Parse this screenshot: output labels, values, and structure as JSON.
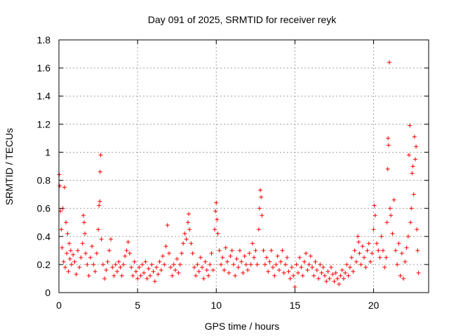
{
  "chart_data": {
    "type": "scatter",
    "title": "Day 091 of 2025, SRMTID for receiver reyk",
    "xlabel": "GPS time / hours",
    "ylabel": "SRMTID / TECUs",
    "xlim": [
      0,
      23.5
    ],
    "ylim": [
      0,
      1.8
    ],
    "xticks": [
      0,
      5,
      10,
      15,
      20
    ],
    "yticks": [
      0,
      0.2,
      0.4,
      0.6,
      0.8,
      1,
      1.2,
      1.4,
      1.6,
      1.8
    ],
    "xtick_labels": [
      "0",
      "5",
      "10",
      "15",
      "20"
    ],
    "ytick_labels": [
      "0",
      "0.2",
      "0.4",
      "0.6",
      "0.8",
      "1",
      "1.2",
      "1.4",
      "1.6",
      "1.8"
    ],
    "grid": true,
    "marker": "+",
    "color": "#ff0000",
    "series": [
      {
        "name": "SRMTID",
        "points": [
          [
            0.02,
            0.84
          ],
          [
            0.05,
            0.76
          ],
          [
            0.1,
            0.58
          ],
          [
            0.15,
            0.45
          ],
          [
            0.2,
            0.32
          ],
          [
            0.25,
            0.6
          ],
          [
            0.3,
            0.22
          ],
          [
            0.35,
            0.75
          ],
          [
            0.4,
            0.18
          ],
          [
            0.45,
            0.5
          ],
          [
            0.5,
            0.28
          ],
          [
            0.55,
            0.42
          ],
          [
            0.6,
            0.15
          ],
          [
            0.65,
            0.35
          ],
          [
            0.7,
            0.24
          ],
          [
            0.75,
            0.3
          ],
          [
            0.8,
            0.2
          ],
          [
            0.9,
            0.27
          ],
          [
            1.0,
            0.22
          ],
          [
            1.1,
            0.13
          ],
          [
            1.2,
            0.3
          ],
          [
            1.3,
            0.18
          ],
          [
            1.4,
            0.25
          ],
          [
            1.5,
            0.35
          ],
          [
            1.55,
            0.55
          ],
          [
            1.6,
            0.5
          ],
          [
            1.65,
            0.42
          ],
          [
            1.7,
            0.28
          ],
          [
            1.8,
            0.2
          ],
          [
            1.9,
            0.12
          ],
          [
            2.0,
            0.25
          ],
          [
            2.1,
            0.33
          ],
          [
            2.2,
            0.2
          ],
          [
            2.3,
            0.15
          ],
          [
            2.4,
            0.28
          ],
          [
            2.5,
            0.45
          ],
          [
            2.55,
            0.62
          ],
          [
            2.6,
            0.65
          ],
          [
            2.62,
            0.86
          ],
          [
            2.65,
            0.98
          ],
          [
            2.7,
            0.38
          ],
          [
            2.8,
            0.2
          ],
          [
            2.9,
            0.1
          ],
          [
            3.0,
            0.16
          ],
          [
            3.1,
            0.22
          ],
          [
            3.2,
            0.3
          ],
          [
            3.3,
            0.38
          ],
          [
            3.4,
            0.18
          ],
          [
            3.5,
            0.12
          ],
          [
            3.6,
            0.2
          ],
          [
            3.7,
            0.15
          ],
          [
            3.8,
            0.22
          ],
          [
            3.9,
            0.18
          ],
          [
            4.0,
            0.12
          ],
          [
            4.1,
            0.2
          ],
          [
            4.2,
            0.26
          ],
          [
            4.3,
            0.3
          ],
          [
            4.4,
            0.36
          ],
          [
            4.5,
            0.28
          ],
          [
            4.6,
            0.18
          ],
          [
            4.7,
            0.12
          ],
          [
            4.8,
            0.22
          ],
          [
            4.9,
            0.15
          ],
          [
            5.0,
            0.1
          ],
          [
            5.1,
            0.18
          ],
          [
            5.2,
            0.12
          ],
          [
            5.3,
            0.2
          ],
          [
            5.4,
            0.14
          ],
          [
            5.5,
            0.22
          ],
          [
            5.6,
            0.1
          ],
          [
            5.7,
            0.17
          ],
          [
            5.8,
            0.12
          ],
          [
            5.9,
            0.2
          ],
          [
            6.0,
            0.15
          ],
          [
            6.1,
            0.08
          ],
          [
            6.2,
            0.18
          ],
          [
            6.3,
            0.13
          ],
          [
            6.4,
            0.22
          ],
          [
            6.5,
            0.16
          ],
          [
            6.6,
            0.26
          ],
          [
            6.7,
            0.2
          ],
          [
            6.8,
            0.33
          ],
          [
            6.9,
            0.48
          ],
          [
            7.0,
            0.28
          ],
          [
            7.1,
            0.18
          ],
          [
            7.2,
            0.12
          ],
          [
            7.3,
            0.2
          ],
          [
            7.4,
            0.16
          ],
          [
            7.5,
            0.24
          ],
          [
            7.6,
            0.14
          ],
          [
            7.7,
            0.2
          ],
          [
            7.8,
            0.28
          ],
          [
            7.9,
            0.35
          ],
          [
            8.0,
            0.42
          ],
          [
            8.1,
            0.38
          ],
          [
            8.2,
            0.5
          ],
          [
            8.25,
            0.56
          ],
          [
            8.3,
            0.45
          ],
          [
            8.4,
            0.35
          ],
          [
            8.5,
            0.28
          ],
          [
            8.6,
            0.18
          ],
          [
            8.7,
            0.12
          ],
          [
            8.8,
            0.2
          ],
          [
            8.9,
            0.15
          ],
          [
            9.0,
            0.25
          ],
          [
            9.1,
            0.18
          ],
          [
            9.2,
            0.1
          ],
          [
            9.3,
            0.22
          ],
          [
            9.4,
            0.16
          ],
          [
            9.5,
            0.12
          ],
          [
            9.6,
            0.2
          ],
          [
            9.7,
            0.28
          ],
          [
            9.8,
            0.16
          ],
          [
            9.9,
            0.45
          ],
          [
            9.95,
            0.58
          ],
          [
            10.0,
            0.64
          ],
          [
            10.05,
            0.52
          ],
          [
            10.1,
            0.42
          ],
          [
            10.2,
            0.3
          ],
          [
            10.3,
            0.2
          ],
          [
            10.4,
            0.25
          ],
          [
            10.5,
            0.16
          ],
          [
            10.6,
            0.32
          ],
          [
            10.7,
            0.22
          ],
          [
            10.8,
            0.14
          ],
          [
            10.9,
            0.26
          ],
          [
            11.0,
            0.3
          ],
          [
            11.1,
            0.2
          ],
          [
            11.2,
            0.12
          ],
          [
            11.3,
            0.24
          ],
          [
            11.4,
            0.18
          ],
          [
            11.5,
            0.3
          ],
          [
            11.6,
            0.22
          ],
          [
            11.7,
            0.14
          ],
          [
            11.8,
            0.26
          ],
          [
            11.9,
            0.2
          ],
          [
            12.0,
            0.16
          ],
          [
            12.1,
            0.28
          ],
          [
            12.2,
            0.2
          ],
          [
            12.3,
            0.35
          ],
          [
            12.4,
            0.25
          ],
          [
            12.5,
            0.3
          ],
          [
            12.6,
            0.2
          ],
          [
            12.7,
            0.45
          ],
          [
            12.75,
            0.6
          ],
          [
            12.8,
            0.73
          ],
          [
            12.85,
            0.68
          ],
          [
            12.9,
            0.55
          ],
          [
            13.0,
            0.3
          ],
          [
            13.1,
            0.2
          ],
          [
            13.2,
            0.25
          ],
          [
            13.3,
            0.15
          ],
          [
            13.4,
            0.22
          ],
          [
            13.5,
            0.3
          ],
          [
            13.6,
            0.18
          ],
          [
            13.7,
            0.12
          ],
          [
            13.8,
            0.2
          ],
          [
            13.9,
            0.26
          ],
          [
            14.0,
            0.16
          ],
          [
            14.1,
            0.22
          ],
          [
            14.2,
            0.3
          ],
          [
            14.3,
            0.14
          ],
          [
            14.4,
            0.2
          ],
          [
            14.5,
            0.25
          ],
          [
            14.6,
            0.15
          ],
          [
            14.7,
            0.1
          ],
          [
            14.8,
            0.18
          ],
          [
            14.9,
            0.12
          ],
          [
            15.0,
            0.04
          ],
          [
            15.1,
            0.2
          ],
          [
            15.2,
            0.14
          ],
          [
            15.3,
            0.25
          ],
          [
            15.4,
            0.18
          ],
          [
            15.5,
            0.12
          ],
          [
            15.6,
            0.22
          ],
          [
            15.7,
            0.28
          ],
          [
            15.8,
            0.16
          ],
          [
            15.9,
            0.2
          ],
          [
            16.0,
            0.26
          ],
          [
            16.1,
            0.18
          ],
          [
            16.2,
            0.12
          ],
          [
            16.3,
            0.22
          ],
          [
            16.4,
            0.16
          ],
          [
            16.5,
            0.1
          ],
          [
            16.6,
            0.2
          ],
          [
            16.7,
            0.14
          ],
          [
            16.8,
            0.18
          ],
          [
            16.9,
            0.12
          ],
          [
            17.0,
            0.08
          ],
          [
            17.1,
            0.15
          ],
          [
            17.2,
            0.1
          ],
          [
            17.3,
            0.18
          ],
          [
            17.4,
            0.13
          ],
          [
            17.5,
            0.08
          ],
          [
            17.6,
            0.14
          ],
          [
            17.7,
            0.1
          ],
          [
            17.8,
            0.06
          ],
          [
            17.9,
            0.12
          ],
          [
            18.0,
            0.16
          ],
          [
            18.1,
            0.1
          ],
          [
            18.2,
            0.14
          ],
          [
            18.3,
            0.2
          ],
          [
            18.4,
            0.12
          ],
          [
            18.5,
            0.18
          ],
          [
            18.6,
            0.25
          ],
          [
            18.7,
            0.15
          ],
          [
            18.8,
            0.3
          ],
          [
            18.9,
            0.22
          ],
          [
            19.0,
            0.4
          ],
          [
            19.05,
            0.36
          ],
          [
            19.1,
            0.28
          ],
          [
            19.2,
            0.2
          ],
          [
            19.3,
            0.33
          ],
          [
            19.4,
            0.25
          ],
          [
            19.5,
            0.18
          ],
          [
            19.6,
            0.3
          ],
          [
            19.7,
            0.35
          ],
          [
            19.8,
            0.22
          ],
          [
            19.9,
            0.28
          ],
          [
            20.0,
            0.45
          ],
          [
            20.05,
            0.62
          ],
          [
            20.1,
            0.55
          ],
          [
            20.2,
            0.35
          ],
          [
            20.3,
            0.3
          ],
          [
            20.4,
            0.25
          ],
          [
            20.5,
            0.4
          ],
          [
            20.6,
            0.3
          ],
          [
            20.7,
            0.18
          ],
          [
            20.8,
            0.25
          ],
          [
            20.85,
            0.5
          ],
          [
            20.9,
            0.88
          ],
          [
            20.92,
            1.1
          ],
          [
            20.95,
            1.05
          ],
          [
            21.0,
            1.64
          ],
          [
            21.05,
            0.6
          ],
          [
            21.1,
            0.55
          ],
          [
            21.2,
            0.42
          ],
          [
            21.3,
            0.66
          ],
          [
            21.4,
            0.3
          ],
          [
            21.5,
            0.2
          ],
          [
            21.6,
            0.35
          ],
          [
            21.7,
            0.12
          ],
          [
            21.8,
            0.28
          ],
          [
            21.9,
            0.1
          ],
          [
            22.0,
            0.22
          ],
          [
            22.1,
            0.32
          ],
          [
            22.2,
            0.4
          ],
          [
            22.25,
            0.98
          ],
          [
            22.3,
            1.19
          ],
          [
            22.35,
            0.5
          ],
          [
            22.4,
            0.6
          ],
          [
            22.45,
            0.85
          ],
          [
            22.5,
            0.9
          ],
          [
            22.55,
            0.7
          ],
          [
            22.6,
            1.11
          ],
          [
            22.65,
            0.95
          ],
          [
            22.7,
            1.04
          ],
          [
            22.75,
            0.45
          ],
          [
            22.8,
            0.3
          ],
          [
            22.85,
            0.14
          ]
        ]
      }
    ]
  }
}
